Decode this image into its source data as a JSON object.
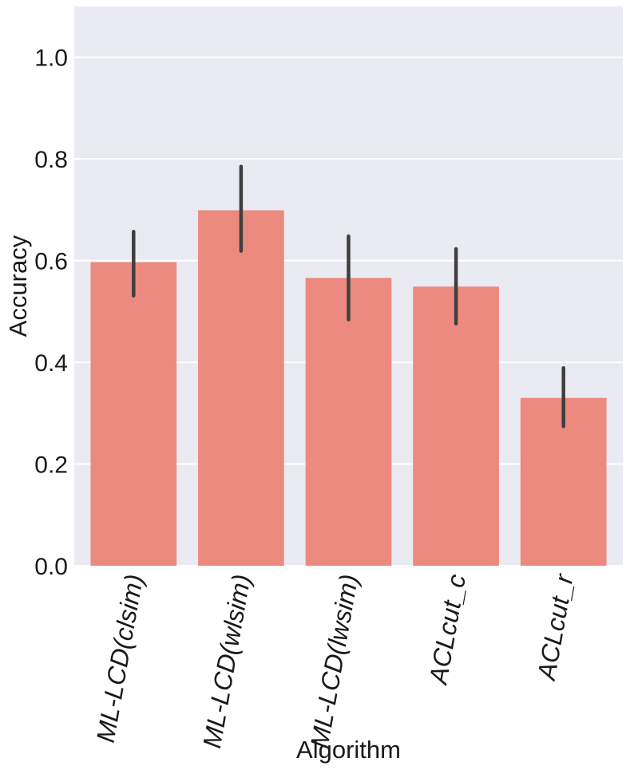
{
  "chart_data": {
    "type": "bar",
    "title": "",
    "xlabel": "Algorithm",
    "ylabel": "Accuracy",
    "categories": [
      "ML-LCD(clsim)",
      "ML-LCD(wlsim)",
      "ML-LCD(lwsim)",
      "ACLcut_c",
      "ACLcut_r"
    ],
    "values": [
      0.597,
      0.699,
      0.566,
      0.549,
      0.33
    ],
    "error_low": [
      0.531,
      0.619,
      0.484,
      0.476,
      0.274
    ],
    "error_high": [
      0.657,
      0.785,
      0.648,
      0.623,
      0.389
    ],
    "ylim": [
      0,
      1.1
    ],
    "yticks": [
      "0.0",
      "0.2",
      "0.4",
      "0.6",
      "0.8",
      "1.0"
    ],
    "grid": true,
    "legend": "none",
    "colors": {
      "bar": "#ec8a80",
      "errorbar": "#3f3f3f",
      "background": "#eaeaf2",
      "grid": "#ffffff"
    }
  }
}
